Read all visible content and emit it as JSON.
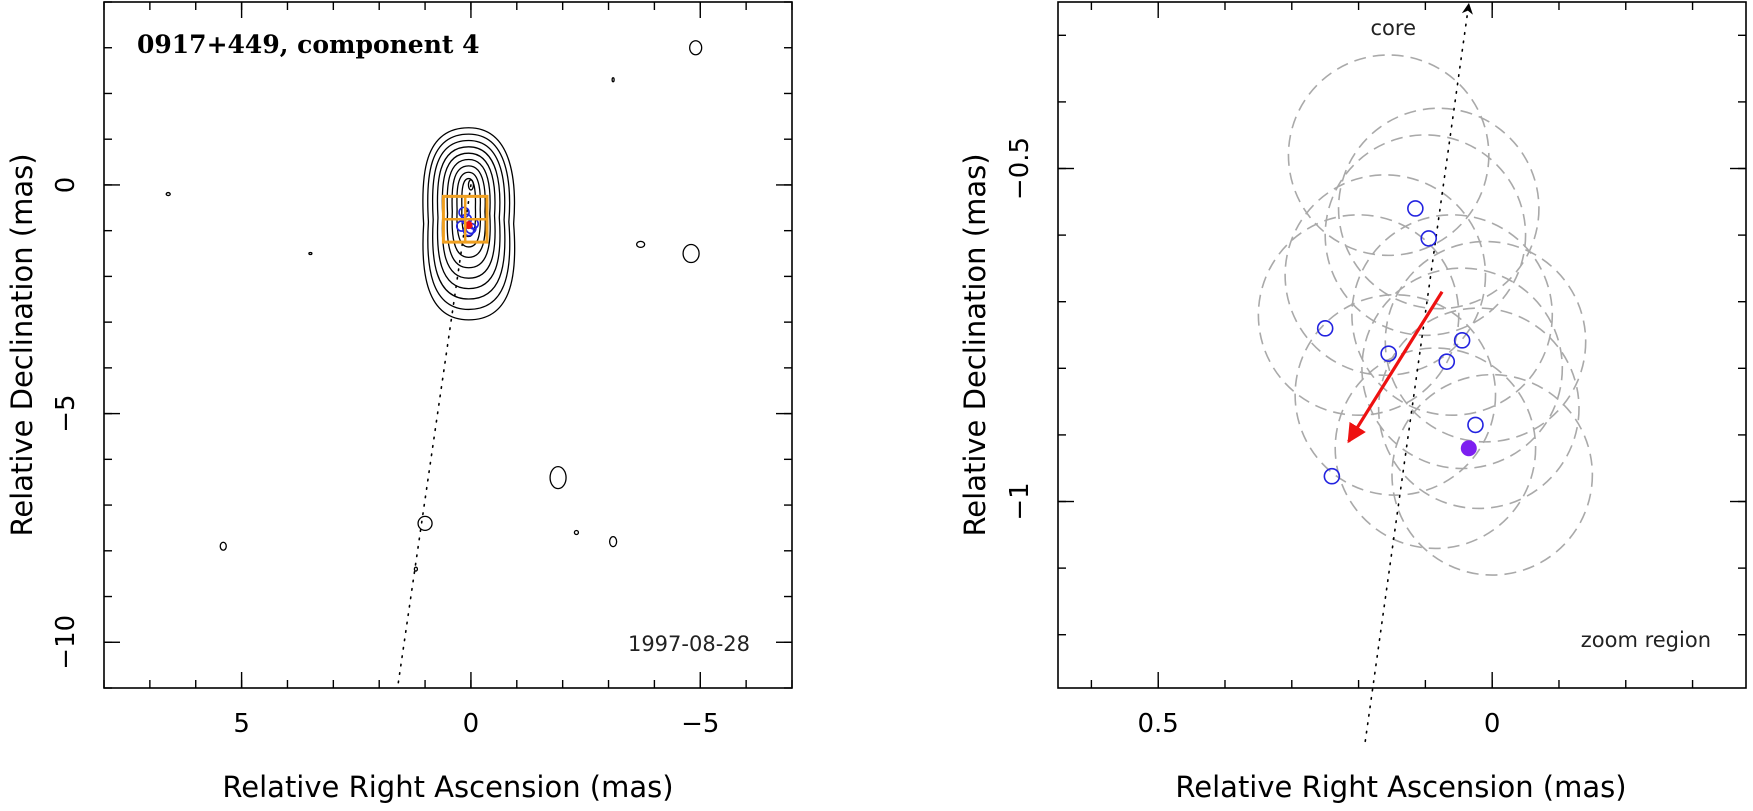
{
  "chart_data": [
    {
      "type": "scatter",
      "title": "0917+449, component 4",
      "epoch": "1997-08-28",
      "xlabel": "Relative Right Ascension (mas)",
      "ylabel": "Relative Declination (mas)",
      "xlim": [
        8.0,
        -7.0
      ],
      "ylim": [
        -11.0,
        4.0
      ],
      "x_ticks": [
        {
          "value": 5,
          "label": "5"
        },
        {
          "value": 0,
          "label": "0"
        },
        {
          "value": -5,
          "label": "−5"
        }
      ],
      "y_ticks": [
        {
          "value": 0,
          "label": "0"
        },
        {
          "value": -5,
          "label": "−5"
        },
        {
          "value": -10,
          "label": "−10"
        }
      ],
      "contour_levels": 9,
      "core_position": {
        "x": 0.0,
        "y": 0.0
      },
      "component_positions": [
        {
          "x": 0.1,
          "y": -0.75
        },
        {
          "x": 0.2,
          "y": -0.9
        },
        {
          "x": 0.05,
          "y": -1.0
        },
        {
          "x": -0.05,
          "y": -0.85
        },
        {
          "x": 0.15,
          "y": -0.6
        },
        {
          "x": 0.0,
          "y": -0.95
        }
      ],
      "zoom_region": {
        "x": [
          0.6,
          -0.35
        ],
        "y": [
          -0.25,
          -1.25
        ],
        "label": "zoom region"
      },
      "jet_direction_line": {
        "from": {
          "x": 0.0,
          "y": 0.0
        },
        "to": {
          "x": 1.6,
          "y": -11.0
        }
      }
    },
    {
      "type": "scatter",
      "title": "",
      "xlabel": "Relative Right Ascension (mas)",
      "ylabel": "Relative Declination (mas)",
      "xlim": [
        0.65,
        -0.38
      ],
      "ylim": [
        -1.28,
        -0.25
      ],
      "x_ticks": [
        {
          "value": 0.5,
          "label": "0.5"
        },
        {
          "value": 0.0,
          "label": "0"
        }
      ],
      "y_ticks": [
        {
          "value": -0.5,
          "label": "−0.5"
        },
        {
          "value": -1.0,
          "label": "−1"
        }
      ],
      "corner_label": "zoom region",
      "core_direction": {
        "label": "core",
        "from": {
          "x": 0.19,
          "y": -1.36
        },
        "to": {
          "x": 0.035,
          "y": -0.25
        }
      },
      "component_positions": [
        {
          "x": 0.115,
          "y": -0.56
        },
        {
          "x": 0.095,
          "y": -0.605
        },
        {
          "x": 0.25,
          "y": -0.74
        },
        {
          "x": 0.155,
          "y": -0.778
        },
        {
          "x": 0.045,
          "y": -0.758
        },
        {
          "x": 0.068,
          "y": -0.79
        },
        {
          "x": 0.025,
          "y": -0.885
        },
        {
          "x": 0.24,
          "y": -0.962
        }
      ],
      "mean_position": {
        "x": 0.035,
        "y": -0.92,
        "color": "#7d1ff0"
      },
      "motion_vector": {
        "from": {
          "x": 0.075,
          "y": -0.685
        },
        "to": {
          "x": 0.215,
          "y": -0.91
        },
        "color": "#ee1111"
      },
      "position_uncertainty_radii_mas": 0.15,
      "uncertainty_circles": [
        {
          "x": 0.155,
          "y": -0.48
        },
        {
          "x": 0.1,
          "y": -0.6
        },
        {
          "x": 0.08,
          "y": -0.56
        },
        {
          "x": 0.16,
          "y": -0.66
        },
        {
          "x": 0.2,
          "y": -0.72
        },
        {
          "x": 0.06,
          "y": -0.72
        },
        {
          "x": 0.01,
          "y": -0.76
        },
        {
          "x": 0.045,
          "y": -0.8
        },
        {
          "x": 0.145,
          "y": -0.84
        },
        {
          "x": 0.02,
          "y": -0.86
        },
        {
          "x": 0.0,
          "y": -0.96
        },
        {
          "x": 0.085,
          "y": -0.92
        }
      ]
    }
  ],
  "colors": {
    "zoom_box": "#f0a020",
    "component_marker": "#2323e0",
    "uncertainty_circle": "#a9a9a9",
    "mean_position": "#7d1ff0",
    "motion_arrow": "#ee1111"
  }
}
